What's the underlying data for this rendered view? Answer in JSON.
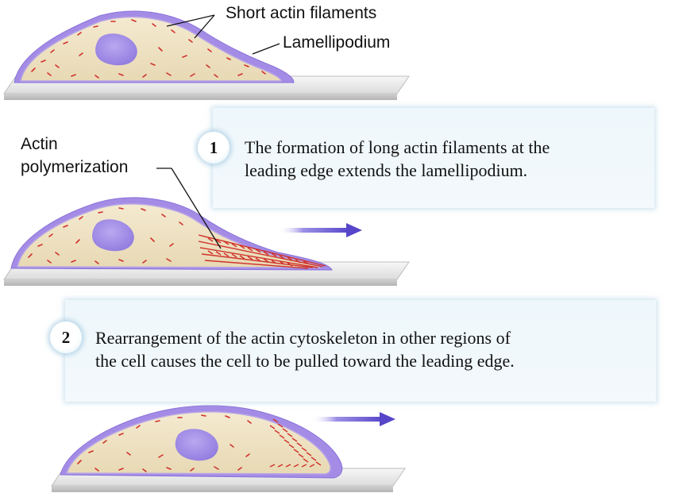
{
  "labels": {
    "short_actin_filaments": "Short actin filaments",
    "lamellipodium": "Lamellipodium",
    "actin_polymerization_line1": "Actin",
    "actin_polymerization_line2": "polymerization"
  },
  "steps": [
    {
      "number": "1",
      "line1": "The formation of long actin filaments at the",
      "line2": "leading edge extends the lamellipodium."
    },
    {
      "number": "2",
      "line1": "Rearrangement of the actin cytoskeleton in other regions of",
      "line2": "the cell causes the cell to be pulled toward the leading edge."
    }
  ],
  "colors": {
    "cytoplasm": "#efe3c2",
    "membrane": "#9b7fe0",
    "nucleus": "#a48ee6",
    "filament": "#d0312b",
    "arrow": "#6a5ad0",
    "panel": "#eef7fb"
  }
}
